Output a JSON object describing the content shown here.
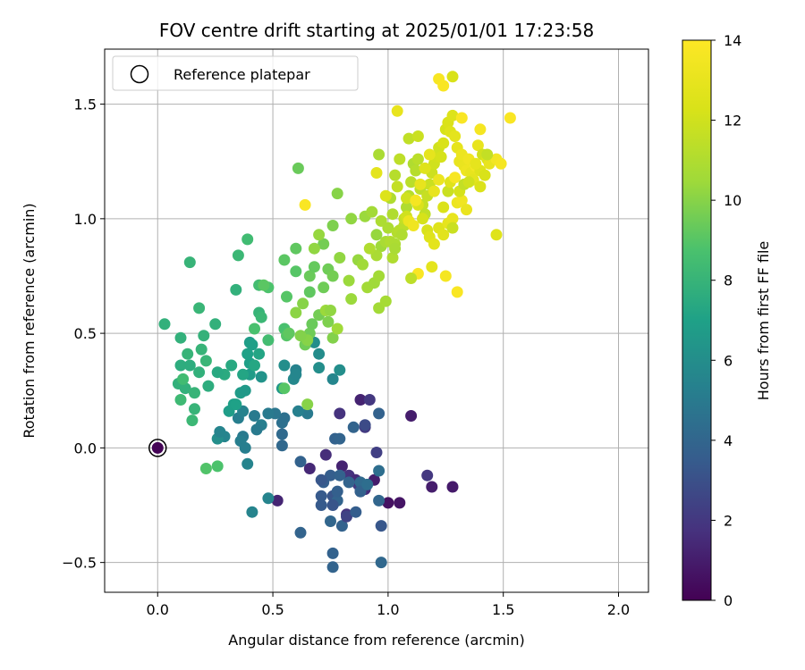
{
  "chart_data": {
    "type": "scatter",
    "title": "FOV centre drift starting at 2025/01/01 17:23:58",
    "xlabel": "Angular distance from reference (arcmin)",
    "ylabel": "Rotation from reference (arcmin)",
    "xlim": [
      -0.23,
      2.13
    ],
    "ylim": [
      -0.63,
      1.74
    ],
    "xticks": [
      0.0,
      0.5,
      1.0,
      1.5,
      2.0
    ],
    "xtick_labels": [
      "0.0",
      "0.5",
      "1.0",
      "1.5",
      "2.0"
    ],
    "yticks": [
      -0.5,
      0.0,
      0.5,
      1.0,
      1.5
    ],
    "ytick_labels": [
      "−0.5",
      "0.0",
      "0.5",
      "1.0",
      "1.5"
    ],
    "grid": true,
    "legend": {
      "placement": "top-left",
      "entries": [
        "Reference platepar"
      ]
    },
    "reference_point": {
      "x": 0.0,
      "y": 0.0,
      "c": 0.1
    },
    "colorbar": {
      "label": "Hours from first FF file",
      "range": [
        0,
        14
      ],
      "ticks": [
        0,
        2,
        4,
        6,
        8,
        10,
        12,
        14
      ],
      "tick_labels": [
        "0",
        "2",
        "4",
        "6",
        "8",
        "10",
        "12",
        "14"
      ],
      "colormap": "viridis"
    },
    "points": [
      [
        0.52,
        -0.23,
        1.3
      ],
      [
        0.66,
        -0.09,
        1.4
      ],
      [
        0.73,
        -0.03,
        1.6
      ],
      [
        0.8,
        -0.08,
        1.2
      ],
      [
        0.83,
        -0.12,
        1.8
      ],
      [
        0.87,
        -0.16,
        2.2
      ],
      [
        0.9,
        -0.18,
        1.5
      ],
      [
        0.94,
        -0.14,
        1.0
      ],
      [
        1.0,
        -0.24,
        0.6
      ],
      [
        1.05,
        -0.24,
        0.7
      ],
      [
        1.17,
        -0.12,
        2.0
      ],
      [
        1.19,
        -0.17,
        1.0
      ],
      [
        1.28,
        -0.17,
        0.9
      ],
      [
        0.88,
        0.21,
        1.2
      ],
      [
        0.92,
        0.21,
        2.0
      ],
      [
        1.1,
        0.14,
        1.0
      ],
      [
        0.82,
        -0.29,
        1.9
      ],
      [
        0.86,
        -0.14,
        1.5
      ],
      [
        0.95,
        -0.02,
        2.3
      ],
      [
        0.9,
        0.09,
        2.1
      ],
      [
        0.88,
        -0.19,
        2.4
      ],
      [
        0.79,
        0.15,
        1.8
      ],
      [
        0.76,
        -0.46,
        3.8
      ],
      [
        0.76,
        -0.52,
        3.9
      ],
      [
        0.97,
        -0.5,
        4.1
      ],
      [
        0.62,
        -0.37,
        3.9
      ],
      [
        0.75,
        -0.32,
        4.0
      ],
      [
        0.8,
        -0.34,
        3.8
      ],
      [
        0.82,
        -0.3,
        2.4
      ],
      [
        0.86,
        -0.28,
        3.6
      ],
      [
        0.97,
        -0.34,
        3.3
      ],
      [
        0.96,
        -0.23,
        4.0
      ],
      [
        0.71,
        -0.21,
        3.4
      ],
      [
        0.76,
        -0.21,
        3.2
      ],
      [
        0.78,
        -0.23,
        3.9
      ],
      [
        0.71,
        -0.25,
        3.4
      ],
      [
        0.76,
        -0.25,
        3.2
      ],
      [
        0.78,
        -0.19,
        3.7
      ],
      [
        0.72,
        -0.15,
        3.6
      ],
      [
        0.75,
        -0.12,
        3.6
      ],
      [
        0.79,
        -0.12,
        3.8
      ],
      [
        0.83,
        -0.15,
        3.9
      ],
      [
        0.88,
        -0.15,
        4.2
      ],
      [
        0.88,
        -0.19,
        3.8
      ],
      [
        0.91,
        -0.16,
        4.4
      ],
      [
        0.96,
        -0.1,
        4.4
      ],
      [
        0.62,
        -0.06,
        3.8
      ],
      [
        0.71,
        -0.14,
        3.3
      ],
      [
        0.77,
        0.04,
        3.8
      ],
      [
        0.79,
        0.04,
        3.9
      ],
      [
        0.85,
        0.09,
        3.9
      ],
      [
        0.9,
        0.1,
        2.8
      ],
      [
        0.96,
        0.15,
        3.8
      ],
      [
        0.54,
        0.01,
        4.1
      ],
      [
        0.54,
        0.06,
        4.2
      ],
      [
        0.54,
        0.11,
        4.5
      ],
      [
        0.55,
        0.13,
        4.5
      ],
      [
        0.51,
        0.15,
        4.8
      ],
      [
        0.48,
        0.15,
        5.0
      ],
      [
        0.45,
        0.1,
        5.2
      ],
      [
        0.43,
        0.08,
        5.0
      ],
      [
        0.42,
        0.14,
        5.0
      ],
      [
        0.37,
        0.05,
        5.0
      ],
      [
        0.35,
        0.13,
        5.2
      ],
      [
        0.37,
        0.16,
        5.4
      ],
      [
        0.29,
        0.05,
        5.5
      ],
      [
        0.26,
        0.04,
        6.0
      ],
      [
        0.27,
        0.07,
        5.5
      ],
      [
        0.36,
        0.03,
        5.2
      ],
      [
        0.38,
        0.0,
        5.2
      ],
      [
        0.39,
        -0.07,
        5.5
      ],
      [
        0.48,
        -0.22,
        5.5
      ],
      [
        0.41,
        -0.28,
        5.5
      ],
      [
        0.65,
        0.15,
        5.0
      ],
      [
        0.61,
        0.16,
        5.3
      ],
      [
        0.59,
        0.3,
        5.7
      ],
      [
        0.6,
        0.34,
        5.4
      ],
      [
        0.6,
        0.32,
        5.6
      ],
      [
        0.68,
        0.46,
        6.0
      ],
      [
        0.7,
        0.41,
        5.9
      ],
      [
        0.7,
        0.35,
        6.0
      ],
      [
        0.76,
        0.3,
        5.6
      ],
      [
        0.79,
        0.34,
        6.0
      ],
      [
        0.55,
        0.36,
        6.0
      ],
      [
        0.54,
        0.26,
        6.5
      ],
      [
        0.45,
        0.31,
        6.3
      ],
      [
        0.36,
        0.24,
        6.7
      ],
      [
        0.38,
        0.25,
        6.6
      ],
      [
        0.31,
        0.16,
        6.8
      ],
      [
        0.33,
        0.19,
        6.9
      ],
      [
        0.34,
        0.19,
        7.0
      ],
      [
        0.4,
        0.32,
        6.7
      ],
      [
        0.4,
        0.37,
        6.9
      ],
      [
        0.39,
        0.41,
        7.0
      ],
      [
        0.4,
        0.46,
        6.8
      ],
      [
        0.41,
        0.45,
        6.9
      ],
      [
        0.44,
        0.41,
        7.2
      ],
      [
        0.42,
        0.36,
        7.3
      ],
      [
        0.37,
        0.32,
        7.2
      ],
      [
        0.32,
        0.36,
        7.4
      ],
      [
        0.29,
        0.32,
        7.5
      ],
      [
        0.26,
        0.33,
        7.4
      ],
      [
        0.22,
        0.27,
        7.6
      ],
      [
        0.18,
        0.33,
        7.8
      ],
      [
        0.14,
        0.36,
        7.6
      ],
      [
        0.1,
        0.36,
        7.6
      ],
      [
        0.09,
        0.28,
        7.8
      ],
      [
        0.12,
        0.26,
        7.8
      ],
      [
        0.16,
        0.24,
        8.0
      ],
      [
        0.16,
        0.17,
        8.0
      ],
      [
        0.15,
        0.12,
        8.2
      ],
      [
        0.1,
        0.21,
        8.3
      ],
      [
        0.11,
        0.3,
        8.4
      ],
      [
        0.13,
        0.41,
        8.0
      ],
      [
        0.1,
        0.48,
        7.8
      ],
      [
        0.19,
        0.43,
        8.0
      ],
      [
        0.2,
        0.49,
        7.9
      ],
      [
        0.21,
        0.38,
        8.1
      ],
      [
        0.25,
        0.54,
        7.8
      ],
      [
        0.18,
        0.61,
        8.1
      ],
      [
        0.14,
        0.81,
        8.0
      ],
      [
        0.03,
        0.54,
        7.8
      ],
      [
        0.34,
        0.69,
        7.8
      ],
      [
        0.35,
        0.84,
        8.2
      ],
      [
        0.39,
        0.91,
        8.4
      ],
      [
        0.44,
        0.59,
        8.0
      ],
      [
        0.45,
        0.57,
        8.2
      ],
      [
        0.48,
        0.47,
        8.5
      ],
      [
        0.42,
        0.52,
        8.7
      ],
      [
        0.44,
        0.71,
        8.5
      ],
      [
        0.48,
        0.7,
        8.8
      ],
      [
        0.46,
        0.71,
        9.1
      ],
      [
        0.55,
        0.52,
        8.7
      ],
      [
        0.56,
        0.49,
        9.0
      ],
      [
        0.57,
        0.5,
        9.2
      ],
      [
        0.56,
        0.66,
        9.0
      ],
      [
        0.55,
        0.82,
        9.1
      ],
      [
        0.6,
        0.77,
        9.0
      ],
      [
        0.6,
        0.87,
        9.2
      ],
      [
        0.66,
        0.68,
        9.2
      ],
      [
        0.66,
        0.75,
        9.4
      ],
      [
        0.68,
        0.79,
        9.3
      ],
      [
        0.64,
        0.45,
        9.5
      ],
      [
        0.66,
        0.5,
        9.5
      ],
      [
        0.67,
        0.54,
        9.4
      ],
      [
        0.7,
        0.58,
        9.6
      ],
      [
        0.74,
        0.55,
        9.8
      ],
      [
        0.76,
        0.48,
        9.9
      ],
      [
        0.72,
        0.7,
        9.5
      ],
      [
        0.74,
        0.78,
        9.5
      ],
      [
        0.76,
        0.75,
        9.6
      ],
      [
        0.72,
        0.89,
        9.6
      ],
      [
        0.76,
        0.97,
        9.8
      ],
      [
        0.78,
        1.11,
        10.0
      ],
      [
        0.61,
        1.22,
        9.4
      ],
      [
        0.63,
        0.63,
        10.0
      ],
      [
        0.65,
        0.47,
        10.0
      ],
      [
        0.68,
        0.87,
        10.2
      ],
      [
        0.7,
        0.93,
        10.3
      ],
      [
        0.73,
        0.6,
        10.4
      ],
      [
        0.75,
        0.6,
        10.2
      ],
      [
        0.78,
        0.52,
        10.5
      ],
      [
        0.79,
        0.83,
        10.2
      ],
      [
        0.83,
        0.73,
        10.4
      ],
      [
        0.84,
        0.65,
        10.4
      ],
      [
        0.87,
        0.82,
        10.3
      ],
      [
        0.89,
        0.8,
        10.5
      ],
      [
        0.91,
        0.7,
        10.6
      ],
      [
        0.94,
        0.72,
        10.5
      ],
      [
        0.96,
        0.61,
        10.6
      ],
      [
        0.99,
        0.64,
        10.7
      ],
      [
        0.84,
        1.0,
        10.2
      ],
      [
        0.9,
        1.01,
        10.4
      ],
      [
        0.95,
        0.93,
        10.3
      ],
      [
        0.97,
        0.88,
        10.5
      ],
      [
        0.99,
        0.9,
        10.8
      ],
      [
        1.0,
        0.96,
        10.9
      ],
      [
        1.01,
        0.9,
        11.0
      ],
      [
        1.03,
        0.89,
        10.9
      ],
      [
        1.02,
        1.02,
        11.0
      ],
      [
        1.04,
        0.94,
        11.1
      ],
      [
        1.05,
        0.95,
        11.2
      ],
      [
        1.07,
        0.97,
        11.3
      ],
      [
        1.08,
        1.05,
        11.0
      ],
      [
        1.09,
        1.1,
        11.2
      ],
      [
        1.1,
        1.16,
        11.3
      ],
      [
        1.11,
        1.24,
        11.0
      ],
      [
        1.12,
        1.21,
        11.2
      ],
      [
        1.13,
        1.26,
        11.3
      ],
      [
        1.14,
        1.13,
        11.4
      ],
      [
        1.15,
        1.06,
        11.6
      ],
      [
        1.16,
        1.02,
        11.5
      ],
      [
        1.17,
        1.1,
        11.7
      ],
      [
        1.18,
        1.15,
        11.8
      ],
      [
        1.19,
        1.2,
        11.9
      ],
      [
        1.2,
        1.24,
        12.0
      ],
      [
        1.21,
        1.27,
        12.1
      ],
      [
        1.22,
        1.31,
        12.0
      ],
      [
        1.23,
        1.27,
        12.2
      ],
      [
        1.24,
        1.33,
        12.3
      ],
      [
        1.25,
        1.39,
        12.2
      ],
      [
        1.26,
        1.42,
        12.4
      ],
      [
        1.27,
        1.38,
        12.6
      ],
      [
        1.28,
        1.45,
        12.5
      ],
      [
        1.29,
        1.36,
        12.8
      ],
      [
        1.3,
        1.31,
        12.9
      ],
      [
        1.31,
        1.25,
        13.0
      ],
      [
        1.32,
        1.28,
        13.2
      ],
      [
        1.33,
        1.23,
        13.1
      ],
      [
        1.34,
        1.21,
        13.3
      ],
      [
        1.35,
        1.26,
        13.4
      ],
      [
        1.36,
        1.2,
        13.0
      ],
      [
        1.37,
        1.17,
        12.8
      ],
      [
        1.38,
        1.23,
        13.5
      ],
      [
        1.39,
        1.32,
        13.0
      ],
      [
        1.4,
        1.21,
        12.6
      ],
      [
        1.41,
        1.28,
        12.0
      ],
      [
        1.42,
        1.19,
        12.3
      ],
      [
        1.43,
        1.26,
        12.5
      ],
      [
        1.44,
        1.24,
        13.0
      ],
      [
        1.47,
        1.26,
        13.5
      ],
      [
        1.49,
        1.24,
        13.6
      ],
      [
        1.53,
        1.44,
        13.8
      ],
      [
        1.4,
        1.39,
        13.6
      ],
      [
        1.32,
        1.44,
        13.8
      ],
      [
        1.28,
        1.62,
        12.3
      ],
      [
        1.22,
        1.61,
        13.7
      ],
      [
        1.24,
        1.58,
        13.8
      ],
      [
        1.04,
        1.47,
        13.0
      ],
      [
        1.09,
        1.35,
        11.5
      ],
      [
        1.13,
        1.36,
        11.8
      ],
      [
        1.05,
        1.26,
        11.4
      ],
      [
        1.03,
        1.19,
        11.2
      ],
      [
        1.01,
        1.09,
        11.0
      ],
      [
        0.96,
        1.28,
        10.8
      ],
      [
        0.95,
        1.2,
        12.8
      ],
      [
        0.99,
        1.1,
        12.5
      ],
      [
        1.04,
        1.14,
        11.6
      ],
      [
        1.08,
        1.09,
        12.0
      ],
      [
        1.13,
        1.06,
        12.4
      ],
      [
        1.15,
        1.0,
        12.2
      ],
      [
        1.17,
        0.95,
        12.3
      ],
      [
        1.18,
        0.92,
        12.6
      ],
      [
        1.2,
        0.89,
        12.8
      ],
      [
        1.22,
        0.96,
        12.6
      ],
      [
        1.24,
        0.93,
        12.7
      ],
      [
        1.26,
        0.98,
        12.9
      ],
      [
        1.28,
        1.0,
        13.0
      ],
      [
        1.3,
        1.07,
        13.2
      ],
      [
        1.32,
        1.08,
        13.4
      ],
      [
        1.34,
        1.04,
        13.1
      ],
      [
        1.28,
        0.96,
        11.8
      ],
      [
        1.3,
        0.68,
        13.8
      ],
      [
        1.25,
        0.75,
        13.6
      ],
      [
        1.19,
        0.79,
        12.8
      ],
      [
        1.13,
        0.76,
        13.8
      ],
      [
        1.1,
        0.74,
        11.4
      ],
      [
        1.02,
        0.83,
        11.0
      ],
      [
        1.03,
        0.87,
        10.8
      ],
      [
        1.06,
        0.93,
        11.0
      ],
      [
        1.07,
        1.0,
        11.6
      ],
      [
        1.08,
        1.01,
        12.0
      ],
      [
        1.09,
        0.99,
        13.2
      ],
      [
        1.11,
        0.97,
        13.4
      ],
      [
        1.12,
        1.08,
        13.6
      ],
      [
        1.14,
        1.15,
        13.0
      ],
      [
        1.16,
        1.22,
        12.6
      ],
      [
        1.18,
        1.28,
        12.9
      ],
      [
        1.2,
        1.12,
        13.0
      ],
      [
        1.22,
        1.17,
        13.2
      ],
      [
        1.24,
        1.05,
        12.4
      ],
      [
        1.26,
        1.12,
        11.8
      ],
      [
        1.27,
        1.16,
        12.6
      ],
      [
        1.29,
        1.18,
        13.7
      ],
      [
        1.31,
        1.12,
        12.2
      ],
      [
        1.33,
        1.15,
        11.6
      ],
      [
        1.35,
        1.16,
        12.0
      ],
      [
        1.38,
        1.24,
        12.9
      ],
      [
        1.4,
        1.14,
        12.4
      ],
      [
        1.43,
        1.28,
        11.6
      ],
      [
        1.47,
        0.93,
        12.6
      ],
      [
        0.64,
        1.06,
        13.8
      ],
      [
        0.93,
        1.03,
        10.6
      ],
      [
        0.97,
        0.99,
        10.9
      ],
      [
        0.95,
        0.84,
        10.8
      ],
      [
        0.92,
        0.87,
        11.0
      ],
      [
        0.96,
        0.75,
        10.6
      ],
      [
        0.21,
        -0.09,
        8.9
      ],
      [
        0.26,
        -0.08,
        8.8
      ],
      [
        0.65,
        0.19,
        10.0
      ],
      [
        0.55,
        0.26,
        9.0
      ],
      [
        0.62,
        0.49,
        9.9
      ],
      [
        0.6,
        0.59,
        10.1
      ]
    ]
  }
}
